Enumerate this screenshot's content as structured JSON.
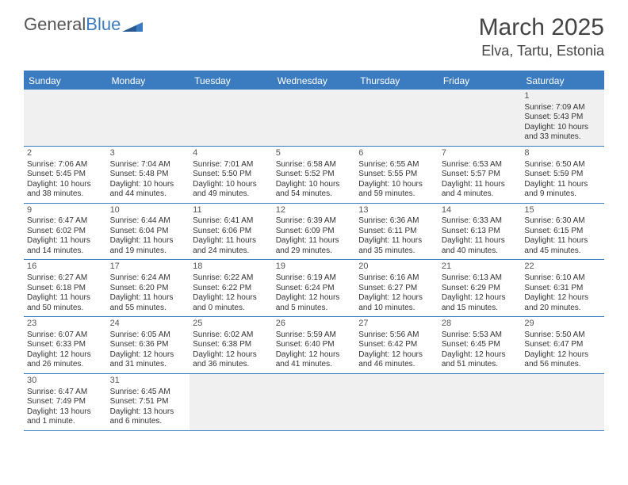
{
  "logo": {
    "text1": "General",
    "text2": "Blue"
  },
  "title": "March 2025",
  "location": "Elva, Tartu, Estonia",
  "colors": {
    "brand": "#3b7bbf",
    "text": "#333333",
    "header_bg": "#3b7bbf",
    "header_fg": "#ffffff",
    "empty_bg": "#f0f0f0"
  },
  "dow": [
    "Sunday",
    "Monday",
    "Tuesday",
    "Wednesday",
    "Thursday",
    "Friday",
    "Saturday"
  ],
  "weeks": [
    [
      null,
      null,
      null,
      null,
      null,
      null,
      {
        "n": "1",
        "sr": "Sunrise: 7:09 AM",
        "ss": "Sunset: 5:43 PM",
        "dl": "Daylight: 10 hours and 33 minutes."
      }
    ],
    [
      {
        "n": "2",
        "sr": "Sunrise: 7:06 AM",
        "ss": "Sunset: 5:45 PM",
        "dl": "Daylight: 10 hours and 38 minutes."
      },
      {
        "n": "3",
        "sr": "Sunrise: 7:04 AM",
        "ss": "Sunset: 5:48 PM",
        "dl": "Daylight: 10 hours and 44 minutes."
      },
      {
        "n": "4",
        "sr": "Sunrise: 7:01 AM",
        "ss": "Sunset: 5:50 PM",
        "dl": "Daylight: 10 hours and 49 minutes."
      },
      {
        "n": "5",
        "sr": "Sunrise: 6:58 AM",
        "ss": "Sunset: 5:52 PM",
        "dl": "Daylight: 10 hours and 54 minutes."
      },
      {
        "n": "6",
        "sr": "Sunrise: 6:55 AM",
        "ss": "Sunset: 5:55 PM",
        "dl": "Daylight: 10 hours and 59 minutes."
      },
      {
        "n": "7",
        "sr": "Sunrise: 6:53 AM",
        "ss": "Sunset: 5:57 PM",
        "dl": "Daylight: 11 hours and 4 minutes."
      },
      {
        "n": "8",
        "sr": "Sunrise: 6:50 AM",
        "ss": "Sunset: 5:59 PM",
        "dl": "Daylight: 11 hours and 9 minutes."
      }
    ],
    [
      {
        "n": "9",
        "sr": "Sunrise: 6:47 AM",
        "ss": "Sunset: 6:02 PM",
        "dl": "Daylight: 11 hours and 14 minutes."
      },
      {
        "n": "10",
        "sr": "Sunrise: 6:44 AM",
        "ss": "Sunset: 6:04 PM",
        "dl": "Daylight: 11 hours and 19 minutes."
      },
      {
        "n": "11",
        "sr": "Sunrise: 6:41 AM",
        "ss": "Sunset: 6:06 PM",
        "dl": "Daylight: 11 hours and 24 minutes."
      },
      {
        "n": "12",
        "sr": "Sunrise: 6:39 AM",
        "ss": "Sunset: 6:09 PM",
        "dl": "Daylight: 11 hours and 29 minutes."
      },
      {
        "n": "13",
        "sr": "Sunrise: 6:36 AM",
        "ss": "Sunset: 6:11 PM",
        "dl": "Daylight: 11 hours and 35 minutes."
      },
      {
        "n": "14",
        "sr": "Sunrise: 6:33 AM",
        "ss": "Sunset: 6:13 PM",
        "dl": "Daylight: 11 hours and 40 minutes."
      },
      {
        "n": "15",
        "sr": "Sunrise: 6:30 AM",
        "ss": "Sunset: 6:15 PM",
        "dl": "Daylight: 11 hours and 45 minutes."
      }
    ],
    [
      {
        "n": "16",
        "sr": "Sunrise: 6:27 AM",
        "ss": "Sunset: 6:18 PM",
        "dl": "Daylight: 11 hours and 50 minutes."
      },
      {
        "n": "17",
        "sr": "Sunrise: 6:24 AM",
        "ss": "Sunset: 6:20 PM",
        "dl": "Daylight: 11 hours and 55 minutes."
      },
      {
        "n": "18",
        "sr": "Sunrise: 6:22 AM",
        "ss": "Sunset: 6:22 PM",
        "dl": "Daylight: 12 hours and 0 minutes."
      },
      {
        "n": "19",
        "sr": "Sunrise: 6:19 AM",
        "ss": "Sunset: 6:24 PM",
        "dl": "Daylight: 12 hours and 5 minutes."
      },
      {
        "n": "20",
        "sr": "Sunrise: 6:16 AM",
        "ss": "Sunset: 6:27 PM",
        "dl": "Daylight: 12 hours and 10 minutes."
      },
      {
        "n": "21",
        "sr": "Sunrise: 6:13 AM",
        "ss": "Sunset: 6:29 PM",
        "dl": "Daylight: 12 hours and 15 minutes."
      },
      {
        "n": "22",
        "sr": "Sunrise: 6:10 AM",
        "ss": "Sunset: 6:31 PM",
        "dl": "Daylight: 12 hours and 20 minutes."
      }
    ],
    [
      {
        "n": "23",
        "sr": "Sunrise: 6:07 AM",
        "ss": "Sunset: 6:33 PM",
        "dl": "Daylight: 12 hours and 26 minutes."
      },
      {
        "n": "24",
        "sr": "Sunrise: 6:05 AM",
        "ss": "Sunset: 6:36 PM",
        "dl": "Daylight: 12 hours and 31 minutes."
      },
      {
        "n": "25",
        "sr": "Sunrise: 6:02 AM",
        "ss": "Sunset: 6:38 PM",
        "dl": "Daylight: 12 hours and 36 minutes."
      },
      {
        "n": "26",
        "sr": "Sunrise: 5:59 AM",
        "ss": "Sunset: 6:40 PM",
        "dl": "Daylight: 12 hours and 41 minutes."
      },
      {
        "n": "27",
        "sr": "Sunrise: 5:56 AM",
        "ss": "Sunset: 6:42 PM",
        "dl": "Daylight: 12 hours and 46 minutes."
      },
      {
        "n": "28",
        "sr": "Sunrise: 5:53 AM",
        "ss": "Sunset: 6:45 PM",
        "dl": "Daylight: 12 hours and 51 minutes."
      },
      {
        "n": "29",
        "sr": "Sunrise: 5:50 AM",
        "ss": "Sunset: 6:47 PM",
        "dl": "Daylight: 12 hours and 56 minutes."
      }
    ],
    [
      {
        "n": "30",
        "sr": "Sunrise: 6:47 AM",
        "ss": "Sunset: 7:49 PM",
        "dl": "Daylight: 13 hours and 1 minute."
      },
      {
        "n": "31",
        "sr": "Sunrise: 6:45 AM",
        "ss": "Sunset: 7:51 PM",
        "dl": "Daylight: 13 hours and 6 minutes."
      },
      null,
      null,
      null,
      null,
      null
    ]
  ]
}
